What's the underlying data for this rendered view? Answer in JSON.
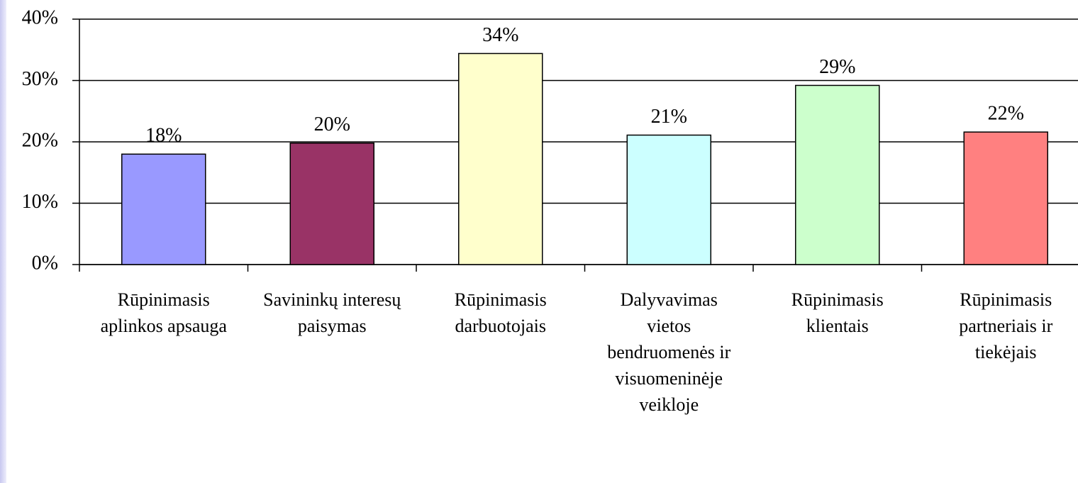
{
  "chart_data": {
    "type": "bar",
    "categories": [
      "Rūpinimasis aplinkos apsauga",
      "Savininkų interesų paisymas",
      "Rūpinimasis darbuotojais",
      "Dalyvavimas vietos bendruomenės ir visuomeninėje veikloje",
      "Rūpinimasis klientais",
      "Rūpinimasis partneriais ir tiekėjais"
    ],
    "values": [
      18,
      19.8,
      34.4,
      21.1,
      29.2,
      21.6
    ],
    "value_labels": [
      "18%",
      "20%",
      "34%",
      "21%",
      "29%",
      "22%"
    ],
    "colors": [
      "#9999ff",
      "#993366",
      "#ffffcc",
      "#ccffff",
      "#ccffcc",
      "#ff8080"
    ],
    "ylim": [
      0,
      40
    ],
    "yticks": [
      {
        "value": 0,
        "label": "0%"
      },
      {
        "value": 10,
        "label": "10%"
      },
      {
        "value": 20,
        "label": "20%"
      },
      {
        "value": 30,
        "label": "30%"
      },
      {
        "value": 40,
        "label": "40%"
      }
    ],
    "grid": true
  }
}
